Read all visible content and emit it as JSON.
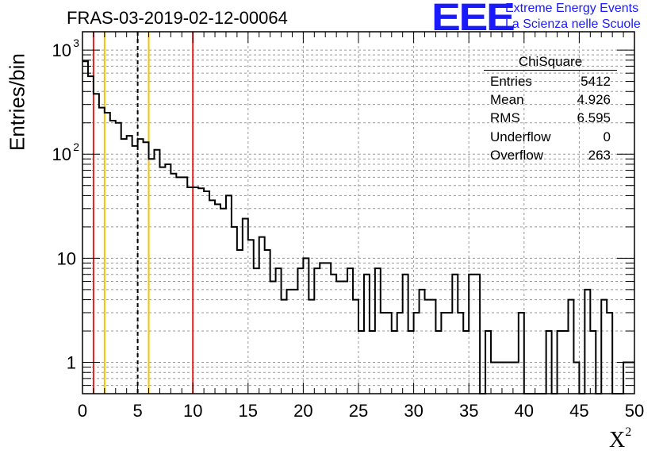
{
  "header": {
    "title": "FRAS-03-2019-02-12-00064"
  },
  "logo": {
    "mark": "EEE",
    "line1": "Extreme Energy Events",
    "line2": "La Scienza nelle Scuole",
    "color": "#1a1aff"
  },
  "stats_box": {
    "name": "ChiSquare",
    "rows": [
      {
        "label": "Entries",
        "value": "5412"
      },
      {
        "label": "Mean",
        "value": "4.926"
      },
      {
        "label": "RMS",
        "value": "6.595"
      },
      {
        "label": "Underflow",
        "value": "0"
      },
      {
        "label": "Overflow",
        "value": "263"
      }
    ]
  },
  "chart_data": {
    "type": "histogram",
    "title": "FRAS-03-2019-02-12-00064",
    "xlabel": "X",
    "xlabel_superscript": "2",
    "ylabel": "Entries/bin",
    "xlim": [
      0,
      50
    ],
    "ylim": [
      0.5,
      1500
    ],
    "y_scale": "log",
    "bin_width": 0.5,
    "x_ticks": [
      "0",
      "5",
      "10",
      "15",
      "20",
      "25",
      "30",
      "35",
      "40",
      "45",
      "50"
    ],
    "y_ticks": [
      {
        "value": 1,
        "label": "1"
      },
      {
        "value": 10,
        "label": "10"
      },
      {
        "value": 100,
        "label": "10",
        "exp": "2"
      },
      {
        "value": 1000,
        "label": "10",
        "exp": "3"
      }
    ],
    "grid": true,
    "bin_contents": [
      780,
      560,
      380,
      280,
      250,
      210,
      200,
      140,
      150,
      120,
      140,
      130,
      90,
      110,
      75,
      80,
      65,
      60,
      60,
      48,
      48,
      47,
      44,
      36,
      33,
      30,
      40,
      20,
      12,
      24,
      15,
      8,
      16,
      12,
      6,
      8,
      4,
      5,
      5,
      8,
      10,
      4,
      8,
      9,
      9,
      7,
      6,
      6,
      8,
      4,
      2,
      7,
      2,
      8,
      3,
      3,
      2,
      3,
      7,
      2,
      3,
      5,
      4,
      4,
      2,
      3,
      3,
      7,
      3,
      2,
      7,
      7,
      0,
      2,
      1,
      1,
      1,
      1,
      1,
      3,
      0,
      0,
      0,
      0,
      2,
      0,
      2,
      2,
      4,
      1,
      0,
      5,
      2,
      0,
      4,
      3,
      0,
      0,
      1,
      1
    ],
    "vertical_lines": [
      {
        "x": 1,
        "color": "#e8201a",
        "style": "solid"
      },
      {
        "x": 2,
        "color": "#f5c400",
        "style": "solid"
      },
      {
        "x": 5,
        "color": "#000000",
        "style": "dashed"
      },
      {
        "x": 6,
        "color": "#f5c400",
        "style": "solid"
      },
      {
        "x": 10,
        "color": "#e8201a",
        "style": "solid"
      }
    ],
    "line_color": "#000000"
  }
}
